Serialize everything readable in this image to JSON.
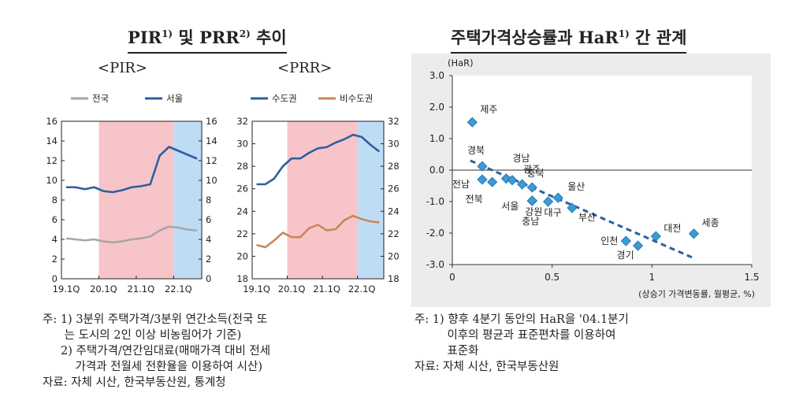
{
  "left_panel": {
    "title_main": "PIR",
    "title_sup1": "1)",
    "title_mid": " 및 ",
    "title_main2": "PRR",
    "title_sup2": "2)",
    "title_tail": " 추이",
    "notes": [
      "주: 1) 3분위 주택가격/3분위 연간소득(전국 또",
      "      는 도시의 2인 이상 비농림어가 기준)",
      "     2) 주택가격/연간임대료(매매가격 대비 전세",
      "         가격과 전월세 전환율을 이용하여 시산)",
      "자료: 자체 시산, 한국부동산원, 통계청"
    ]
  },
  "right_panel": {
    "title_main": "주택가격상승률과 HaR",
    "title_sup": "1)",
    "title_tail": " 간 관계",
    "notes": [
      "주: 1) 향후 4분기 동안의 HaR을 '04.1분기",
      "         이후의 평균과 표준편차를 이용하여",
      "         표준화",
      "자료: 자체 시산, 한국부동산원"
    ]
  },
  "chart_data": [
    {
      "type": "line",
      "subtitle": "<PIR>",
      "x_ticks": [
        "19.1Q",
        "20.1Q",
        "21.1Q",
        "22.1Q"
      ],
      "ylim": [
        0,
        16
      ],
      "y_ticks": [
        0,
        2,
        4,
        6,
        8,
        10,
        12,
        14,
        16
      ],
      "shaded": [
        {
          "from": "20.1Q",
          "to": "22.1Q",
          "color": "#f7c5c9"
        },
        {
          "from": "22.1Q",
          "to": "22.3Q",
          "color": "#bfdcf5"
        }
      ],
      "x": [
        "19.1Q",
        "19.2Q",
        "19.3Q",
        "19.4Q",
        "20.1Q",
        "20.2Q",
        "20.3Q",
        "20.4Q",
        "21.1Q",
        "21.2Q",
        "21.3Q",
        "21.4Q",
        "22.1Q",
        "22.2Q",
        "22.3Q"
      ],
      "series": [
        {
          "name": "전국",
          "color": "#a6a6a6",
          "values": [
            4.1,
            4.0,
            3.9,
            4.0,
            3.8,
            3.7,
            3.8,
            4.0,
            4.1,
            4.3,
            4.9,
            5.3,
            5.2,
            5.0,
            4.9
          ]
        },
        {
          "name": "서울",
          "color": "#2e5f9e",
          "values": [
            9.3,
            9.3,
            9.1,
            9.3,
            8.9,
            8.8,
            9.0,
            9.3,
            9.4,
            9.6,
            12.5,
            13.4,
            13.0,
            12.6,
            12.2
          ]
        }
      ]
    },
    {
      "type": "line",
      "subtitle": "<PRR>",
      "x_ticks": [
        "19.1Q",
        "20.1Q",
        "21.1Q",
        "22.1Q"
      ],
      "ylim": [
        18,
        32
      ],
      "y_ticks": [
        18,
        20,
        22,
        24,
        26,
        28,
        30,
        32
      ],
      "shaded": [
        {
          "from": "20.1Q",
          "to": "22.1Q",
          "color": "#f7c5c9"
        },
        {
          "from": "22.1Q",
          "to": "22.3Q",
          "color": "#bfdcf5"
        }
      ],
      "x": [
        "19.1Q",
        "19.2Q",
        "19.3Q",
        "19.4Q",
        "20.1Q",
        "20.2Q",
        "20.3Q",
        "20.4Q",
        "21.1Q",
        "21.2Q",
        "21.3Q",
        "21.4Q",
        "22.1Q",
        "22.2Q",
        "22.3Q"
      ],
      "series": [
        {
          "name": "수도권",
          "color": "#2e5f9e",
          "values": [
            26.4,
            26.4,
            26.9,
            28.0,
            28.7,
            28.7,
            29.2,
            29.6,
            29.7,
            30.1,
            30.4,
            30.8,
            30.6,
            29.9,
            29.3
          ]
        },
        {
          "name": "비수도권",
          "color": "#c9875a",
          "values": [
            21.0,
            20.8,
            21.4,
            22.1,
            21.7,
            21.7,
            22.5,
            22.8,
            22.3,
            22.4,
            23.2,
            23.6,
            23.3,
            23.1,
            23.0
          ]
        }
      ]
    },
    {
      "type": "scatter",
      "ylabel": "(HaR)",
      "xlabel": "(상승기 가격변동률, 월평균, %)",
      "xlim": [
        0,
        1.5
      ],
      "ylim": [
        -3.0,
        3.0
      ],
      "x_ticks": [
        "0",
        "0.5",
        "1",
        "1.5"
      ],
      "y_ticks": [
        "3.0",
        "2.0",
        "1.0",
        "0.0",
        "-1.0",
        "-2.0",
        "-3.0"
      ],
      "point_color": "#3c9ad6",
      "trend": {
        "x": [
          0.09,
          1.2
        ],
        "y": [
          0.3,
          -2.77
        ],
        "color": "#2e5f9e"
      },
      "points": [
        {
          "label": "제주",
          "x": 0.1,
          "y": 1.52
        },
        {
          "label": "경북",
          "x": 0.15,
          "y": 0.12
        },
        {
          "label": "경남",
          "x": 0.27,
          "y": -0.27
        },
        {
          "label": "광주",
          "x": 0.3,
          "y": -0.32
        },
        {
          "label": "전남",
          "x": 0.15,
          "y": -0.3
        },
        {
          "label": "전북",
          "x": 0.2,
          "y": -0.38
        },
        {
          "label": "충북",
          "x": 0.35,
          "y": -0.45
        },
        {
          "label": "울산",
          "x": 0.53,
          "y": -0.88
        },
        {
          "label": "강원",
          "x": 0.4,
          "y": -0.98
        },
        {
          "label": "서울",
          "x": 0.4,
          "y": -0.55
        },
        {
          "label": "충남",
          "x": 0.4,
          "y": -0.97
        },
        {
          "label": "대구",
          "x": 0.48,
          "y": -1.0
        },
        {
          "label": "부산",
          "x": 0.6,
          "y": -1.2
        },
        {
          "label": "인천",
          "x": 0.87,
          "y": -2.25
        },
        {
          "label": "대전",
          "x": 1.02,
          "y": -2.1
        },
        {
          "label": "경기",
          "x": 0.93,
          "y": -2.4
        },
        {
          "label": "세종",
          "x": 1.21,
          "y": -2.02
        }
      ]
    }
  ]
}
